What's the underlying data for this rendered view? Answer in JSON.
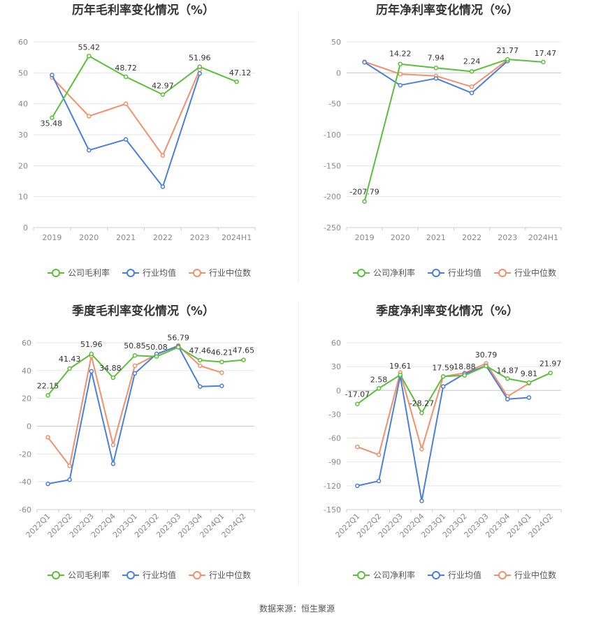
{
  "source": "数据来源：恒生聚源",
  "colors": {
    "company": "#5bbf3a",
    "avg": "#4a7fdc",
    "median": "#f2906b"
  },
  "chart_data": [
    {
      "type": "line",
      "title": "历年毛利率变化情况（%）",
      "categories": [
        "2019",
        "2020",
        "2021",
        "2022",
        "2023",
        "2024H1"
      ],
      "ylim": [
        0,
        60
      ],
      "yticks": [
        0,
        10,
        20,
        30,
        40,
        50,
        60
      ],
      "xlabel_rotate": false,
      "grid": true,
      "legend_position": "bottom",
      "series": [
        {
          "name": "公司毛利率",
          "key": "company",
          "values": [
            35.48,
            55.42,
            48.72,
            42.97,
            51.96,
            47.12
          ],
          "labels": [
            "35.48",
            "55.42",
            "48.72",
            "42.97",
            "51.96",
            "47.12"
          ]
        },
        {
          "name": "行业均值",
          "key": "avg",
          "values": [
            49.3,
            25.0,
            28.5,
            13.2,
            49.8,
            null
          ]
        },
        {
          "name": "行业中位数",
          "key": "median",
          "values": [
            48.5,
            36.0,
            40.0,
            23.3,
            51.0,
            null
          ]
        }
      ]
    },
    {
      "type": "line",
      "title": "历年净利率变化情况（%）",
      "categories": [
        "2019",
        "2020",
        "2021",
        "2022",
        "2023",
        "2024H1"
      ],
      "ylim": [
        -250,
        50
      ],
      "yticks": [
        -250,
        -200,
        -150,
        -100,
        -50,
        0,
        50
      ],
      "xlabel_rotate": false,
      "grid": true,
      "legend_position": "bottom",
      "series": [
        {
          "name": "公司净利率",
          "key": "company",
          "values": [
            -207.79,
            14.22,
            7.94,
            2.24,
            21.77,
            17.47
          ],
          "labels": [
            "-207.79",
            "14.22",
            "7.94",
            "2.24",
            "21.77",
            "17.47"
          ]
        },
        {
          "name": "行业均值",
          "key": "avg",
          "values": [
            17.0,
            -20.0,
            -9.0,
            -32.5,
            19.0,
            null
          ]
        },
        {
          "name": "行业中位数",
          "key": "median",
          "values": [
            18.0,
            -2.0,
            -5.0,
            -22.5,
            21.0,
            null
          ]
        }
      ]
    },
    {
      "type": "line",
      "title": "季度毛利率变化情况（%）",
      "categories": [
        "2022Q1",
        "2022Q2",
        "2022Q3",
        "2022Q4",
        "2023Q1",
        "2023Q2",
        "2023Q3",
        "2023Q4",
        "2024Q1",
        "2024Q2"
      ],
      "ylim": [
        -60,
        60
      ],
      "yticks": [
        -60,
        -40,
        -20,
        0,
        20,
        40,
        60
      ],
      "xlabel_rotate": true,
      "grid": true,
      "legend_position": "bottom",
      "series": [
        {
          "name": "公司毛利率",
          "key": "company",
          "values": [
            22.15,
            41.43,
            51.96,
            34.88,
            50.85,
            50.08,
            56.79,
            47.46,
            46.21,
            47.65
          ],
          "labels": [
            "22.15",
            "41.43",
            "51.96",
            "34.88",
            "50.85",
            "50.08",
            "56.79",
            "47.46",
            "46.21",
            "47.65"
          ]
        },
        {
          "name": "行业均值",
          "key": "avg",
          "values": [
            -41.5,
            -38.5,
            39.5,
            -27.0,
            38.0,
            52.0,
            57.5,
            28.5,
            29.0,
            null
          ]
        },
        {
          "name": "行业中位数",
          "key": "median",
          "values": [
            -8.0,
            -28.5,
            50.5,
            -13.5,
            43.5,
            51.5,
            58.0,
            43.5,
            38.5,
            null
          ]
        }
      ]
    },
    {
      "type": "line",
      "title": "季度净利率变化情况（%）",
      "categories": [
        "2022Q1",
        "2022Q2",
        "2022Q3",
        "2022Q4",
        "2023Q1",
        "2023Q2",
        "2023Q3",
        "2023Q4",
        "2024Q1",
        "2024Q2"
      ],
      "ylim": [
        -150,
        60
      ],
      "yticks": [
        -150,
        -120,
        -90,
        -60,
        -30,
        0,
        30,
        60
      ],
      "xlabel_rotate": true,
      "grid": true,
      "legend_position": "bottom",
      "series": [
        {
          "name": "公司净利率",
          "key": "company",
          "values": [
            -17.07,
            2.58,
            19.61,
            -28.27,
            17.59,
            18.88,
            30.79,
            14.87,
            9.81,
            21.97
          ],
          "labels": [
            "-17.07",
            "2.58",
            "19.61",
            "-28.27",
            "17.59",
            "18.88",
            "30.79",
            "14.87",
            "9.81",
            "21.97"
          ]
        },
        {
          "name": "行业均值",
          "key": "avg",
          "values": [
            -120.0,
            -114.0,
            18.0,
            -139.0,
            5.0,
            21.0,
            31.0,
            -11.0,
            -9.0,
            null
          ]
        },
        {
          "name": "行业中位数",
          "key": "median",
          "values": [
            -71.0,
            -81.0,
            22.5,
            -74.0,
            17.5,
            22.0,
            34.0,
            -7.5,
            9.0,
            null
          ]
        }
      ]
    }
  ]
}
